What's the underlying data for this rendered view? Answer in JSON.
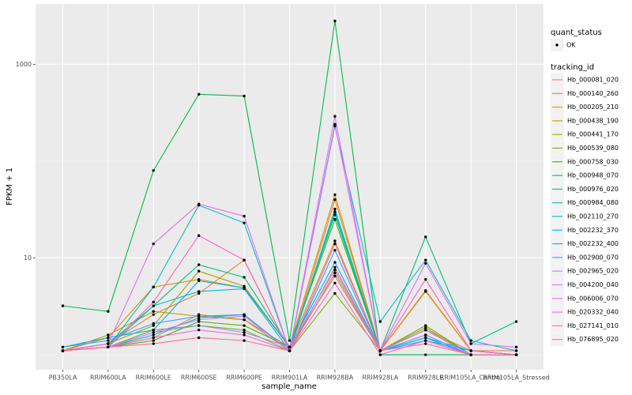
{
  "chart_data": {
    "type": "line",
    "x_label": "sample_name",
    "y_label": "FPKM + 1",
    "log_scale": true,
    "grid": true,
    "point_color": "#000000",
    "categories": [
      "PB350LA",
      "RRIM600LA",
      "RRIM600LE",
      "RRIM600SE",
      "RRIM600PE",
      "RRIM901LA",
      "RRIM928BA",
      "RRIM928LA",
      "RRIM928LE",
      "RRIM105LA_Control",
      "RRIM105LA_Stressed"
    ],
    "ylim": [
      0.7,
      4200
    ],
    "yticks": [
      10,
      1000
    ],
    "legend_position": "right",
    "point_legend": {
      "title": "quant_status",
      "labels": [
        "OK"
      ]
    },
    "legend_title": "tracking_id",
    "series": [
      {
        "name": "Hb_000081_020",
        "color": "#F8766D",
        "values": [
          1.1,
          1.2,
          1.5,
          2.6,
          2.3,
          1.1,
          8,
          1.1,
          1.8,
          1.1,
          1.1
        ]
      },
      {
        "name": "Hb_000140_260",
        "color": "#EA8331",
        "values": [
          1.1,
          1.3,
          2.6,
          4.3,
          9.5,
          1.1,
          40,
          1.1,
          4.5,
          1.1,
          1.0
        ]
      },
      {
        "name": "Hb_000205_210",
        "color": "#D89000",
        "values": [
          1.1,
          1.5,
          5.0,
          6.0,
          4.9,
          1.2,
          45,
          1.1,
          4.6,
          1.1,
          1.0
        ]
      },
      {
        "name": "Hb_000438_190",
        "color": "#C09B00",
        "values": [
          1.1,
          1.6,
          2.8,
          2.5,
          2.3,
          1.2,
          15,
          1.1,
          1.6,
          1.0,
          1.0
        ]
      },
      {
        "name": "Hb_000441_170",
        "color": "#A3A500",
        "values": [
          1.1,
          1.3,
          2.0,
          7.3,
          5.1,
          1.2,
          6.5,
          1.1,
          1.9,
          1.0,
          1.0
        ]
      },
      {
        "name": "Hb_000539_080",
        "color": "#7CAE00",
        "values": [
          1.1,
          1.2,
          1.8,
          2.0,
          1.8,
          1.1,
          4.3,
          1.1,
          2.0,
          1.0,
          1.0
        ]
      },
      {
        "name": "Hb_000758_030",
        "color": "#39B600",
        "values": [
          1.1,
          1.2,
          1.4,
          2.2,
          2.0,
          1.2,
          25,
          1.1,
          1.8,
          1.0,
          1.0
        ]
      },
      {
        "name": "Hb_000948_070",
        "color": "#00BB4E",
        "values": [
          3.2,
          2.8,
          80,
          490,
          470,
          1.4,
          2800,
          1.0,
          1.0,
          1.0,
          1.0
        ]
      },
      {
        "name": "Hb_000976_020",
        "color": "#00BF7D",
        "values": [
          1.1,
          1.3,
          3.2,
          8.5,
          6.3,
          1.2,
          28,
          1.1,
          16.5,
          1.3,
          2.2
        ]
      },
      {
        "name": "Hb_000984_080",
        "color": "#00C1A3",
        "values": [
          1.1,
          1.2,
          1.6,
          2.4,
          2.6,
          1.1,
          30,
          1.1,
          1.4,
          1.1,
          1.0
        ]
      },
      {
        "name": "Hb_002110_270",
        "color": "#00BFC4",
        "values": [
          1.1,
          1.2,
          5.0,
          35,
          23,
          1.1,
          230,
          2.2,
          9.5,
          1.4,
          1.1
        ]
      },
      {
        "name": "Hb_002232_370",
        "color": "#00BAE0",
        "values": [
          1.1,
          1.2,
          3.2,
          4.5,
          4.8,
          1.1,
          32,
          1.1,
          1.5,
          1.1,
          1.0
        ]
      },
      {
        "name": "Hb_002232_400",
        "color": "#00B0F6",
        "values": [
          1.2,
          1.5,
          1.8,
          5.8,
          4.9,
          1.2,
          9,
          1.1,
          1.5,
          1.0,
          1.0
        ]
      },
      {
        "name": "Hb_002900_070",
        "color": "#35A2FF",
        "values": [
          1.2,
          1.4,
          2.1,
          2.5,
          2.6,
          1.1,
          12,
          1.1,
          1.4,
          1.0,
          1.0
        ]
      },
      {
        "name": "Hb_002965_020",
        "color": "#9590FF",
        "values": [
          1.1,
          1.2,
          1.7,
          2.0,
          1.7,
          1.2,
          7.5,
          1.1,
          1.6,
          1.0,
          1.0
        ]
      },
      {
        "name": "Hb_004200_040",
        "color": "#C77CFF",
        "values": [
          1.1,
          1.2,
          1.7,
          2.3,
          2.5,
          1.1,
          290,
          1.1,
          1.8,
          1.0,
          1.0
        ]
      },
      {
        "name": "Hb_006006_070",
        "color": "#E76BF3",
        "values": [
          1.1,
          1.3,
          14,
          36,
          27,
          1.1,
          240,
          1.1,
          8.8,
          1.3,
          1.2
        ]
      },
      {
        "name": "Hb_020332_040",
        "color": "#FA62DB",
        "values": [
          1.1,
          1.2,
          1.5,
          1.8,
          1.6,
          1.1,
          5.5,
          1.0,
          1.4,
          1.0,
          1.0
        ]
      },
      {
        "name": "Hb_027141_010",
        "color": "#FF62BC",
        "values": [
          1.1,
          1.2,
          3.5,
          17,
          9.5,
          1.1,
          14,
          1.1,
          6.0,
          1.1,
          1.0
        ]
      },
      {
        "name": "Hb_076895_020",
        "color": "#FF6C91",
        "values": [
          1.1,
          1.2,
          1.3,
          1.5,
          1.4,
          1.1,
          7,
          1.1,
          1.3,
          1.0,
          1.0
        ]
      }
    ]
  }
}
